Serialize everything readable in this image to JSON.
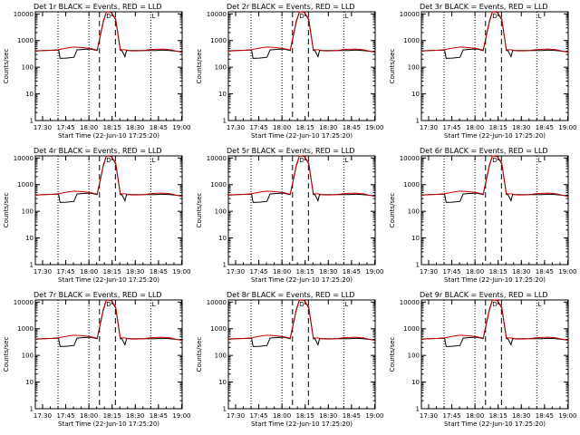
{
  "chart_data": {
    "type": "line",
    "panel_titles": [
      "Det 1r BLACK = Events, RED = LLD",
      "Det 2r BLACK = Events, RED = LLD",
      "Det 3r BLACK = Events, RED = LLD",
      "Det 4r BLACK = Events, RED = LLD",
      "Det 5r BLACK = Events, RED = LLD",
      "Det 6r BLACK = Events, RED = LLD",
      "Det 7r BLACK = Events, RED = LLD",
      "Det 8r BLACK = Events, RED = LLD",
      "Det 9r BLACK = Events, RED = LLD"
    ],
    "xlabel": "Start Time (22-Jun-10 17:25:20)",
    "ylabel": "Counts/sec",
    "x_tick_labels": [
      "17:30",
      "17:45",
      "18:00",
      "18:15",
      "18:30",
      "18:45",
      "19:00"
    ],
    "y_tick_labels": [
      "1",
      "10",
      "100",
      "1000",
      "10000"
    ],
    "x_tick_minutes": [
      4.67,
      19.67,
      34.67,
      49.67,
      64.67,
      79.67,
      94.67
    ],
    "xlim_minutes": [
      0,
      95
    ],
    "ylim": [
      1,
      12000
    ],
    "yscale": "log",
    "vlines": {
      "dotted_minutes": [
        14.67,
        34.67,
        74.67
      ],
      "dashed_minutes": [
        41.5,
        51.8
      ]
    },
    "markers": [
      {
        "label": "D",
        "x_minutes": 47.5,
        "y": 12000
      },
      {
        "label": "L",
        "x_minutes": 76.5,
        "y": 12000
      }
    ],
    "series": [
      {
        "name": "Events",
        "color": "#000000",
        "x": [
          0,
          5,
          10,
          15,
          16,
          20,
          25,
          27,
          32,
          36,
          40,
          44,
          46,
          49,
          52,
          55,
          56,
          58,
          59,
          62,
          66,
          70,
          74,
          76,
          78,
          82,
          87,
          95
        ],
        "y": [
          410,
          420,
          430,
          440,
          215,
          220,
          235,
          445,
          470,
          480,
          420,
          5000,
          12000,
          11500,
          6000,
          420,
          420,
          250,
          420,
          420,
          420,
          420,
          420,
          420,
          420,
          440,
          420,
          380
        ]
      },
      {
        "name": "LLD",
        "color": "#cc0000",
        "x": [
          0,
          5,
          10,
          15,
          20,
          25,
          30,
          36,
          40,
          44,
          46,
          49,
          52,
          55,
          58,
          62,
          66,
          70,
          74,
          78,
          82,
          87,
          95
        ],
        "y": [
          400,
          420,
          430,
          460,
          520,
          570,
          550,
          500,
          440,
          5500,
          12000,
          11800,
          6500,
          450,
          450,
          410,
          410,
          420,
          460,
          470,
          480,
          460,
          360
        ]
      }
    ]
  }
}
